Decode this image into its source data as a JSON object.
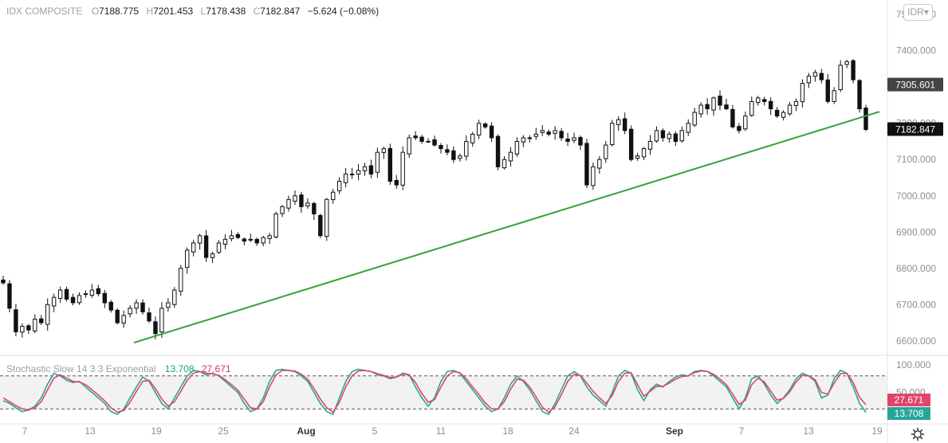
{
  "header": {
    "symbol": "IDX COMPOSITE",
    "open_key": "O",
    "open": "7188.775",
    "high_key": "H",
    "high": "7201.453",
    "low_key": "L",
    "low": "7178.438",
    "close_key": "C",
    "close": "7182.847",
    "change": "−5.624 (−0.08%)"
  },
  "currency": {
    "label": "IDR",
    "icon": "chevron-down-icon"
  },
  "stochastic": {
    "name": "Stochastic Slow 14 3 3 Exponential",
    "k_value": "13.708",
    "d_value": "27.671",
    "upper_level": 80,
    "lower_level": 20,
    "k_color": "#26a69a",
    "d_color": "#e0456b"
  },
  "chart_data": [
    {
      "type": "candlestick",
      "title": "IDX COMPOSITE",
      "currency": "IDR",
      "y_ticks": [
        "7500.000",
        "7400.000",
        "7300.000",
        "7200.000",
        "7100.000",
        "7000.000",
        "6900.000",
        "6800.000",
        "6700.000",
        "6600.000"
      ],
      "ylim": [
        6560,
        7540
      ],
      "x_ticks": [
        "7",
        "13",
        "19",
        "25",
        "Aug",
        "5",
        "11",
        "18",
        "24",
        "Sep",
        "7",
        "13",
        "19"
      ],
      "price_labels": [
        {
          "value": "7305.601",
          "color": "#444444"
        },
        {
          "value": "7182.847",
          "color": "#111111"
        }
      ],
      "trendline": {
        "color": "#3aa23a",
        "from_value": 6595,
        "to_value": 7232
      },
      "candle_color": "#111111",
      "grid": false,
      "closes": [
        6760,
        6690,
        6625,
        6640,
        6630,
        6660,
        6650,
        6700,
        6720,
        6740,
        6715,
        6705,
        6725,
        6730,
        6740,
        6730,
        6705,
        6685,
        6650,
        6670,
        6690,
        6705,
        6680,
        6655,
        6620,
        6690,
        6705,
        6740,
        6800,
        6850,
        6870,
        6890,
        6830,
        6840,
        6870,
        6880,
        6890,
        6885,
        6875,
        6880,
        6870,
        6885,
        6890,
        6950,
        6970,
        6990,
        7000,
        6970,
        6980,
        6950,
        6890,
        6990,
        7010,
        7040,
        7060,
        7060,
        7070,
        7080,
        7060,
        7120,
        7130,
        7040,
        7030,
        7120,
        7160,
        7160,
        7150,
        7150,
        7140,
        7130,
        7120,
        7100,
        7110,
        7150,
        7170,
        7200,
        7190,
        7160,
        7080,
        7100,
        7120,
        7150,
        7160,
        7160,
        7170,
        7180,
        7170,
        7180,
        7160,
        7150,
        7160,
        7140,
        7030,
        7080,
        7100,
        7140,
        7200,
        7210,
        7180,
        7100,
        7110,
        7130,
        7150,
        7180,
        7160,
        7170,
        7150,
        7180,
        7200,
        7230,
        7250,
        7240,
        7270,
        7250,
        7240,
        7190,
        7180,
        7220,
        7260,
        7270,
        7260,
        7240,
        7220,
        7230,
        7250,
        7260,
        7310,
        7330,
        7340,
        7320,
        7260,
        7290,
        7360,
        7370,
        7320,
        7240,
        7182.847
      ]
    },
    {
      "type": "line",
      "title": "Stochastic Slow 14 3 3 Exponential",
      "y_ticks": [
        "100.000",
        "50.000"
      ],
      "ylim": [
        0,
        100
      ],
      "levels": [
        80,
        20
      ],
      "series": [
        {
          "name": "%K",
          "color": "#26a69a",
          "last": "13.708",
          "values": [
            35,
            30,
            22,
            15,
            18,
            25,
            40,
            65,
            85,
            80,
            72,
            68,
            70,
            60,
            50,
            40,
            30,
            15,
            10,
            20,
            40,
            60,
            78,
            70,
            50,
            30,
            20,
            40,
            60,
            80,
            90,
            88,
            82,
            85,
            80,
            70,
            60,
            50,
            30,
            15,
            20,
            40,
            70,
            90,
            92,
            90,
            88,
            80,
            70,
            50,
            30,
            15,
            10,
            40,
            70,
            88,
            92,
            90,
            88,
            82,
            80,
            75,
            78,
            85,
            82,
            60,
            40,
            25,
            40,
            70,
            88,
            90,
            85,
            70,
            55,
            40,
            25,
            15,
            20,
            40,
            65,
            80,
            70,
            55,
            35,
            15,
            10,
            30,
            55,
            80,
            88,
            80,
            60,
            45,
            35,
            25,
            50,
            80,
            90,
            85,
            55,
            35,
            55,
            65,
            60,
            70,
            78,
            82,
            80,
            88,
            90,
            88,
            80,
            70,
            60,
            40,
            20,
            40,
            75,
            80,
            65,
            45,
            30,
            40,
            55,
            75,
            85,
            80,
            70,
            40,
            45,
            75,
            90,
            85,
            60,
            30,
            13.708
          ]
        },
        {
          "name": "%D",
          "color": "#e0456b",
          "last": "27.671",
          "values": [
            40,
            33,
            26,
            20,
            18,
            22,
            33,
            55,
            76,
            82,
            76,
            70,
            69,
            64,
            55,
            45,
            35,
            22,
            14,
            17,
            32,
            52,
            70,
            72,
            57,
            38,
            25,
            33,
            52,
            72,
            85,
            88,
            85,
            84,
            81,
            73,
            64,
            54,
            38,
            22,
            20,
            33,
            60,
            82,
            90,
            90,
            89,
            83,
            74,
            57,
            38,
            22,
            14,
            32,
            60,
            80,
            89,
            90,
            88,
            84,
            81,
            77,
            78,
            83,
            82,
            68,
            48,
            32,
            37,
            60,
            80,
            88,
            86,
            75,
            60,
            46,
            31,
            20,
            20,
            33,
            56,
            74,
            72,
            60,
            42,
            23,
            14,
            24,
            46,
            70,
            83,
            81,
            67,
            52,
            40,
            30,
            44,
            70,
            85,
            86,
            64,
            43,
            52,
            61,
            61,
            67,
            74,
            79,
            80,
            86,
            89,
            88,
            83,
            74,
            64,
            47,
            28,
            36,
            64,
            76,
            69,
            52,
            36,
            39,
            51,
            69,
            81,
            80,
            73,
            50,
            47,
            67,
            84,
            85,
            68,
            41,
            27.671
          ]
        }
      ]
    }
  ]
}
